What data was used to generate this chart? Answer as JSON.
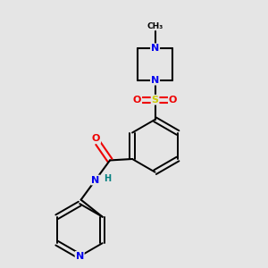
{
  "background_color": "#e5e5e5",
  "bond_color": "#000000",
  "atom_colors": {
    "N": "#0000ee",
    "O": "#ee0000",
    "S": "#cccc00",
    "C": "#000000",
    "H": "#008080"
  },
  "figsize": [
    3.0,
    3.0
  ],
  "dpi": 100
}
